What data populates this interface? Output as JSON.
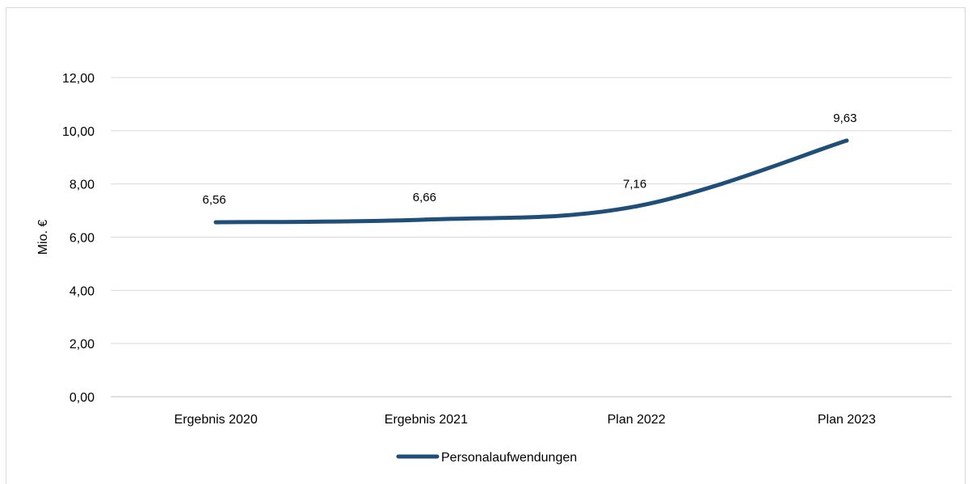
{
  "chart_data": {
    "type": "line",
    "categories": [
      "Ergebnis 2020",
      "Ergebnis 2021",
      "Plan 2022",
      "Plan 2023"
    ],
    "series": [
      {
        "name": "Personalaufwendungen",
        "values": [
          6.56,
          6.66,
          7.16,
          9.63
        ],
        "labels": [
          "6,56",
          "6,66",
          "7,16",
          "9,63"
        ],
        "color": "#1f4e79"
      }
    ],
    "y_ticks": [
      0,
      2,
      4,
      6,
      8,
      10,
      12
    ],
    "y_tick_labels": [
      "0,00",
      "2,00",
      "4,00",
      "6,00",
      "8,00",
      "10,00",
      "12,00"
    ],
    "ylim": [
      0,
      12
    ],
    "ylabel": "Mio. €",
    "grid": true,
    "legend_position": "bottom"
  }
}
